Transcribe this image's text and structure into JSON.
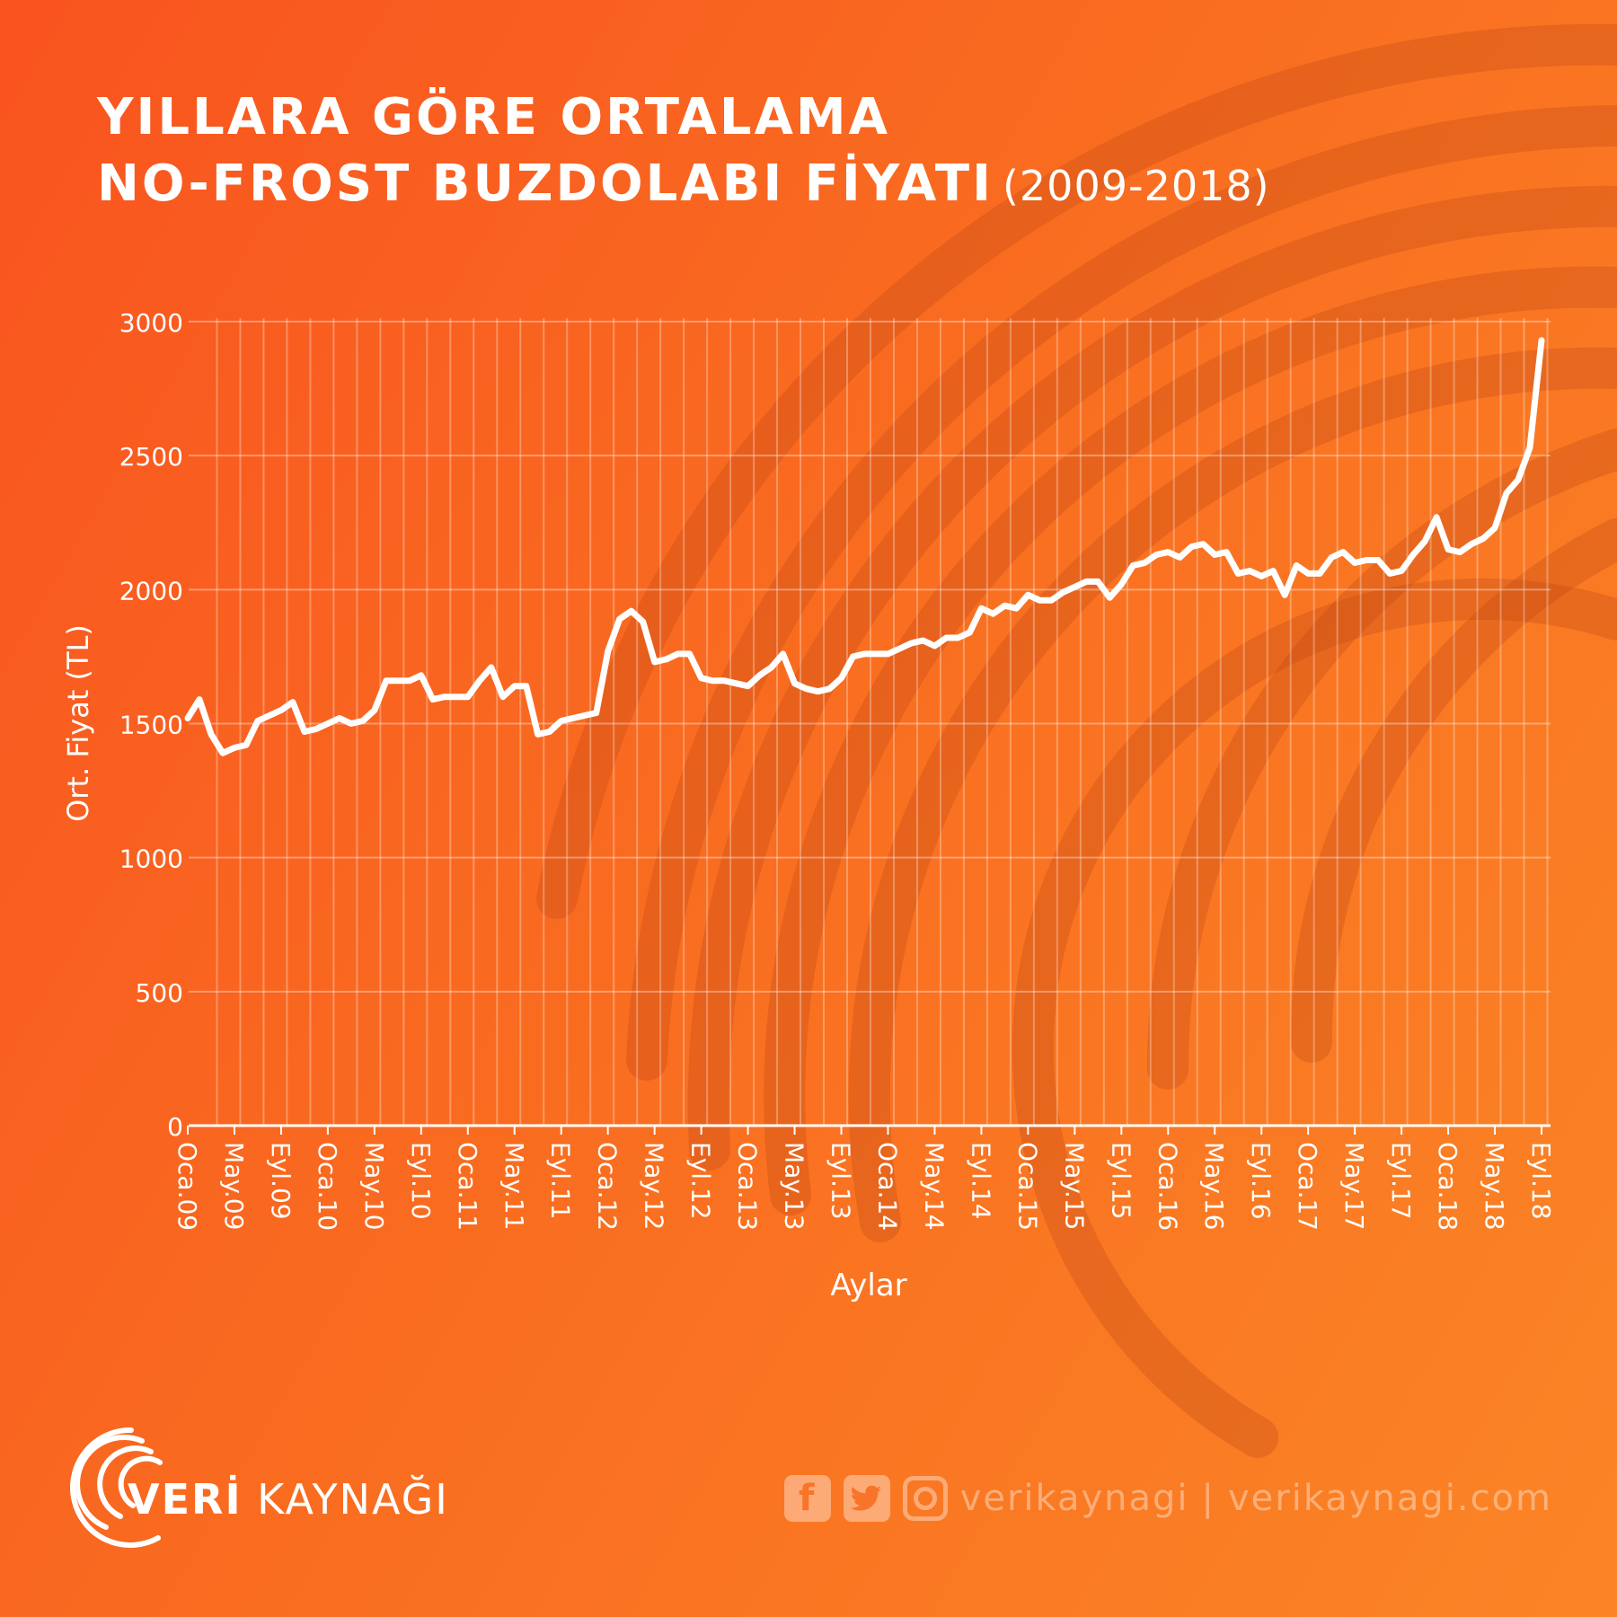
{
  "title": {
    "line1": "YILLARA GÖRE ORTALAMA",
    "line2": "NO-FROST BUZDOLABI FİYATI",
    "subtitle": "(2009-2018)"
  },
  "brand": {
    "name_bold": "VERİ",
    "name_rest": " KAYNAĞI"
  },
  "social": {
    "handle": "verikaynagi",
    "separator": "|",
    "site": "verikaynagi.com",
    "icons": [
      "facebook-icon",
      "twitter-icon",
      "instagram-icon"
    ]
  },
  "colors": {
    "line": "#ffffff",
    "gradient_start": "#f9531f",
    "gradient_end": "#fb8526"
  },
  "chart_data": {
    "type": "line",
    "xlabel": "Aylar",
    "ylabel": "Ort. Fiyat (TL)",
    "ylim": [
      0,
      3000
    ],
    "yticks": [
      0,
      500,
      1000,
      1500,
      2000,
      2500,
      3000
    ],
    "xtick_labels": [
      "Oca.09",
      "May.09",
      "Eyl.09",
      "Oca.10",
      "May.10",
      "Eyl.10",
      "Oca.11",
      "May.11",
      "Eyl.11",
      "Oca.12",
      "May.12",
      "Eyl.12",
      "Oca.13",
      "May.13",
      "Eyl.13",
      "Oca.14",
      "May.14",
      "Eyl.14",
      "Oca.15",
      "May.15",
      "Eyl.15",
      "Oca.16",
      "May.16",
      "Eyl.16",
      "Oca.17",
      "May.17",
      "Eyl.17",
      "Oca.18",
      "May.18",
      "Eyl.18"
    ],
    "grid": true,
    "series": [
      {
        "values": [
          1520,
          1590,
          1460,
          1390,
          1410,
          1420,
          1510,
          1530,
          1550,
          1580,
          1470,
          1480,
          1500,
          1520,
          1500,
          1510,
          1550,
          1660,
          1660,
          1660,
          1680,
          1590,
          1600,
          1600,
          1600,
          1660,
          1710,
          1600,
          1640,
          1640,
          1460,
          1470,
          1510,
          1520,
          1530,
          1540,
          1770,
          1890,
          1920,
          1880,
          1730,
          1740,
          1760,
          1760,
          1670,
          1660,
          1660,
          1650,
          1640,
          1680,
          1710,
          1760,
          1650,
          1630,
          1620,
          1630,
          1670,
          1750,
          1760,
          1760,
          1760,
          1780,
          1800,
          1810,
          1790,
          1820,
          1820,
          1840,
          1930,
          1910,
          1940,
          1930,
          1980,
          1960,
          1960,
          1990,
          2010,
          2030,
          2030,
          1970,
          2020,
          2090,
          2100,
          2130,
          2140,
          2120,
          2160,
          2170,
          2130,
          2140,
          2060,
          2070,
          2050,
          2070,
          1980,
          2090,
          2060,
          2060,
          2120,
          2140,
          2100,
          2110,
          2110,
          2060,
          2070,
          2130,
          2180,
          2270,
          2150,
          2140,
          2170,
          2190,
          2230,
          2360,
          2410,
          2530,
          2930
        ]
      }
    ]
  }
}
